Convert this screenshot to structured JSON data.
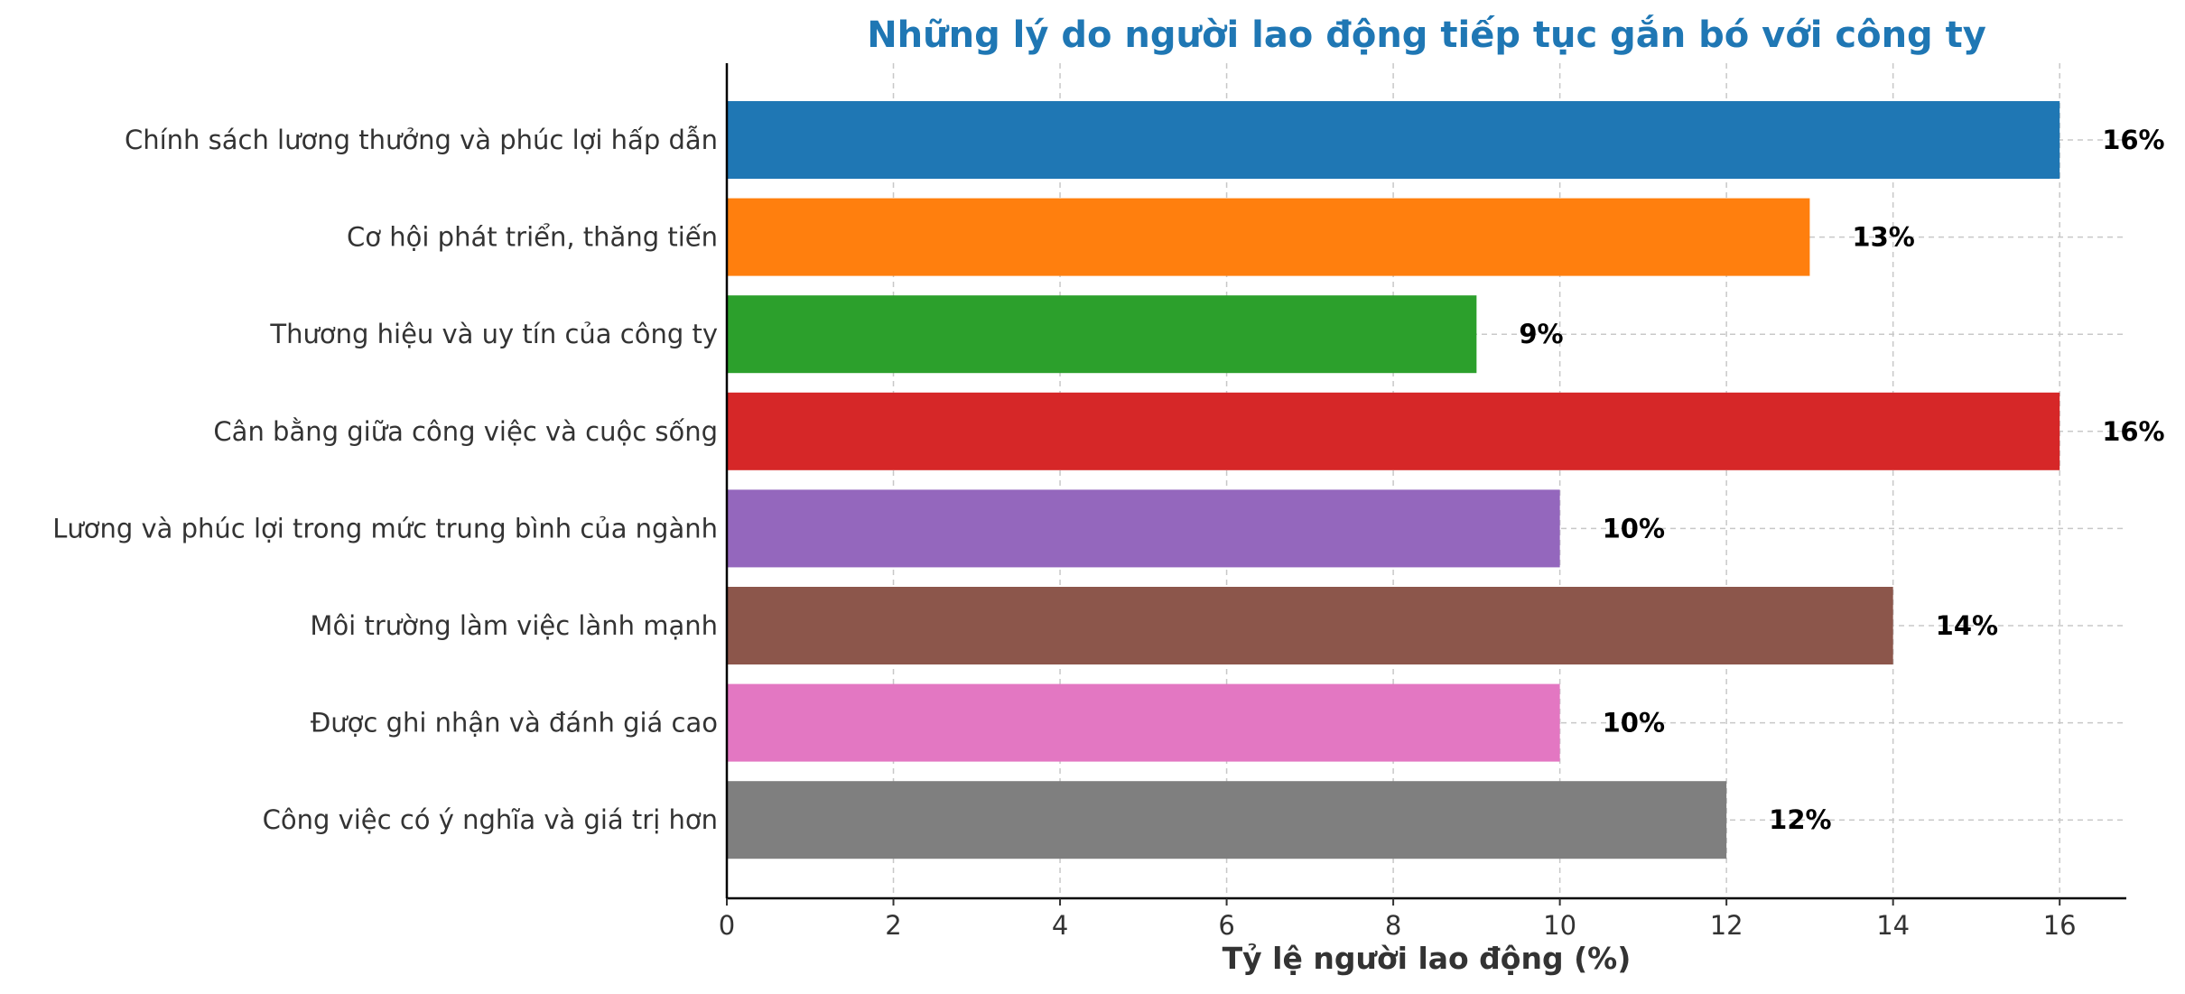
{
  "chart_data": {
    "type": "bar",
    "orientation": "horizontal",
    "title": "Những lý do người lao động tiếp tục gắn bó với công ty",
    "xlabel": "Tỷ lệ người lao động (%)",
    "ylabel": "",
    "xlim": [
      0,
      16.8
    ],
    "xticks": [
      0,
      2,
      4,
      6,
      8,
      10,
      12,
      14,
      16
    ],
    "grid": true,
    "value_suffix": "%",
    "title_color": "#1f77b4",
    "categories": [
      "Chính sách lương thưởng và phúc lợi hấp dẫn",
      "Cơ hội phát triển, thăng tiến",
      "Thương hiệu và uy tín của công ty",
      "Cân bằng giữa công việc và cuộc sống",
      "Lương và phúc lợi trong mức trung bình của ngành",
      "Môi trường làm việc lành mạnh",
      "Được ghi nhận và đánh giá cao",
      "Công việc có ý nghĩa và giá trị hơn"
    ],
    "values": [
      16,
      13,
      9,
      16,
      10,
      14,
      10,
      12
    ],
    "colors": [
      "#1f77b4",
      "#ff7f0e",
      "#2ca02c",
      "#d62728",
      "#9467bd",
      "#8c564b",
      "#e377c2",
      "#7f7f7f"
    ]
  }
}
